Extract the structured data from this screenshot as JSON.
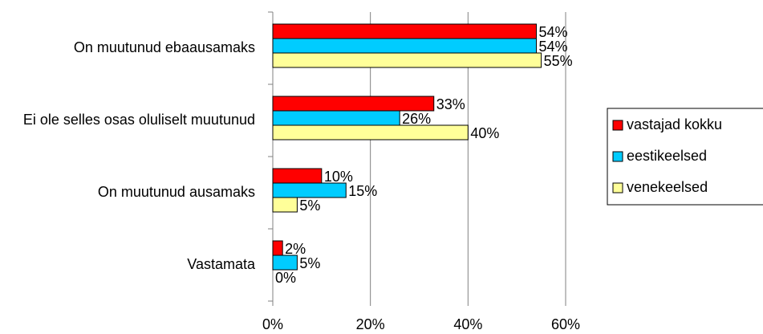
{
  "chart_data": {
    "type": "hbar",
    "categories": [
      "On muutunud ebaausamaks",
      "Ei ole selles osas oluliselt muutunud",
      "On muutunud ausamaks",
      "Vastamata"
    ],
    "series": [
      {
        "name": "vastajad kokku",
        "color": "#ff0000",
        "values": [
          54,
          33,
          10,
          2
        ],
        "value_labels": [
          "54%",
          "33%",
          "10%",
          "2%"
        ]
      },
      {
        "name": "eestikeelsed",
        "color": "#00ccff",
        "values": [
          54,
          26,
          15,
          5
        ],
        "value_labels": [
          "54%",
          "26%",
          "15%",
          "5%"
        ]
      },
      {
        "name": "venekeelsed",
        "color": "#ffff99",
        "values": [
          55,
          40,
          5,
          0
        ],
        "value_labels": [
          "55%",
          "40%",
          "5%",
          "0%"
        ]
      }
    ],
    "xlim": [
      0,
      60
    ],
    "xticks": [
      {
        "value": 0,
        "label": "0%"
      },
      {
        "value": 20,
        "label": "20%"
      },
      {
        "value": 40,
        "label": "40%"
      },
      {
        "value": 60,
        "label": "60%"
      }
    ],
    "grid": true,
    "legend": "right"
  }
}
